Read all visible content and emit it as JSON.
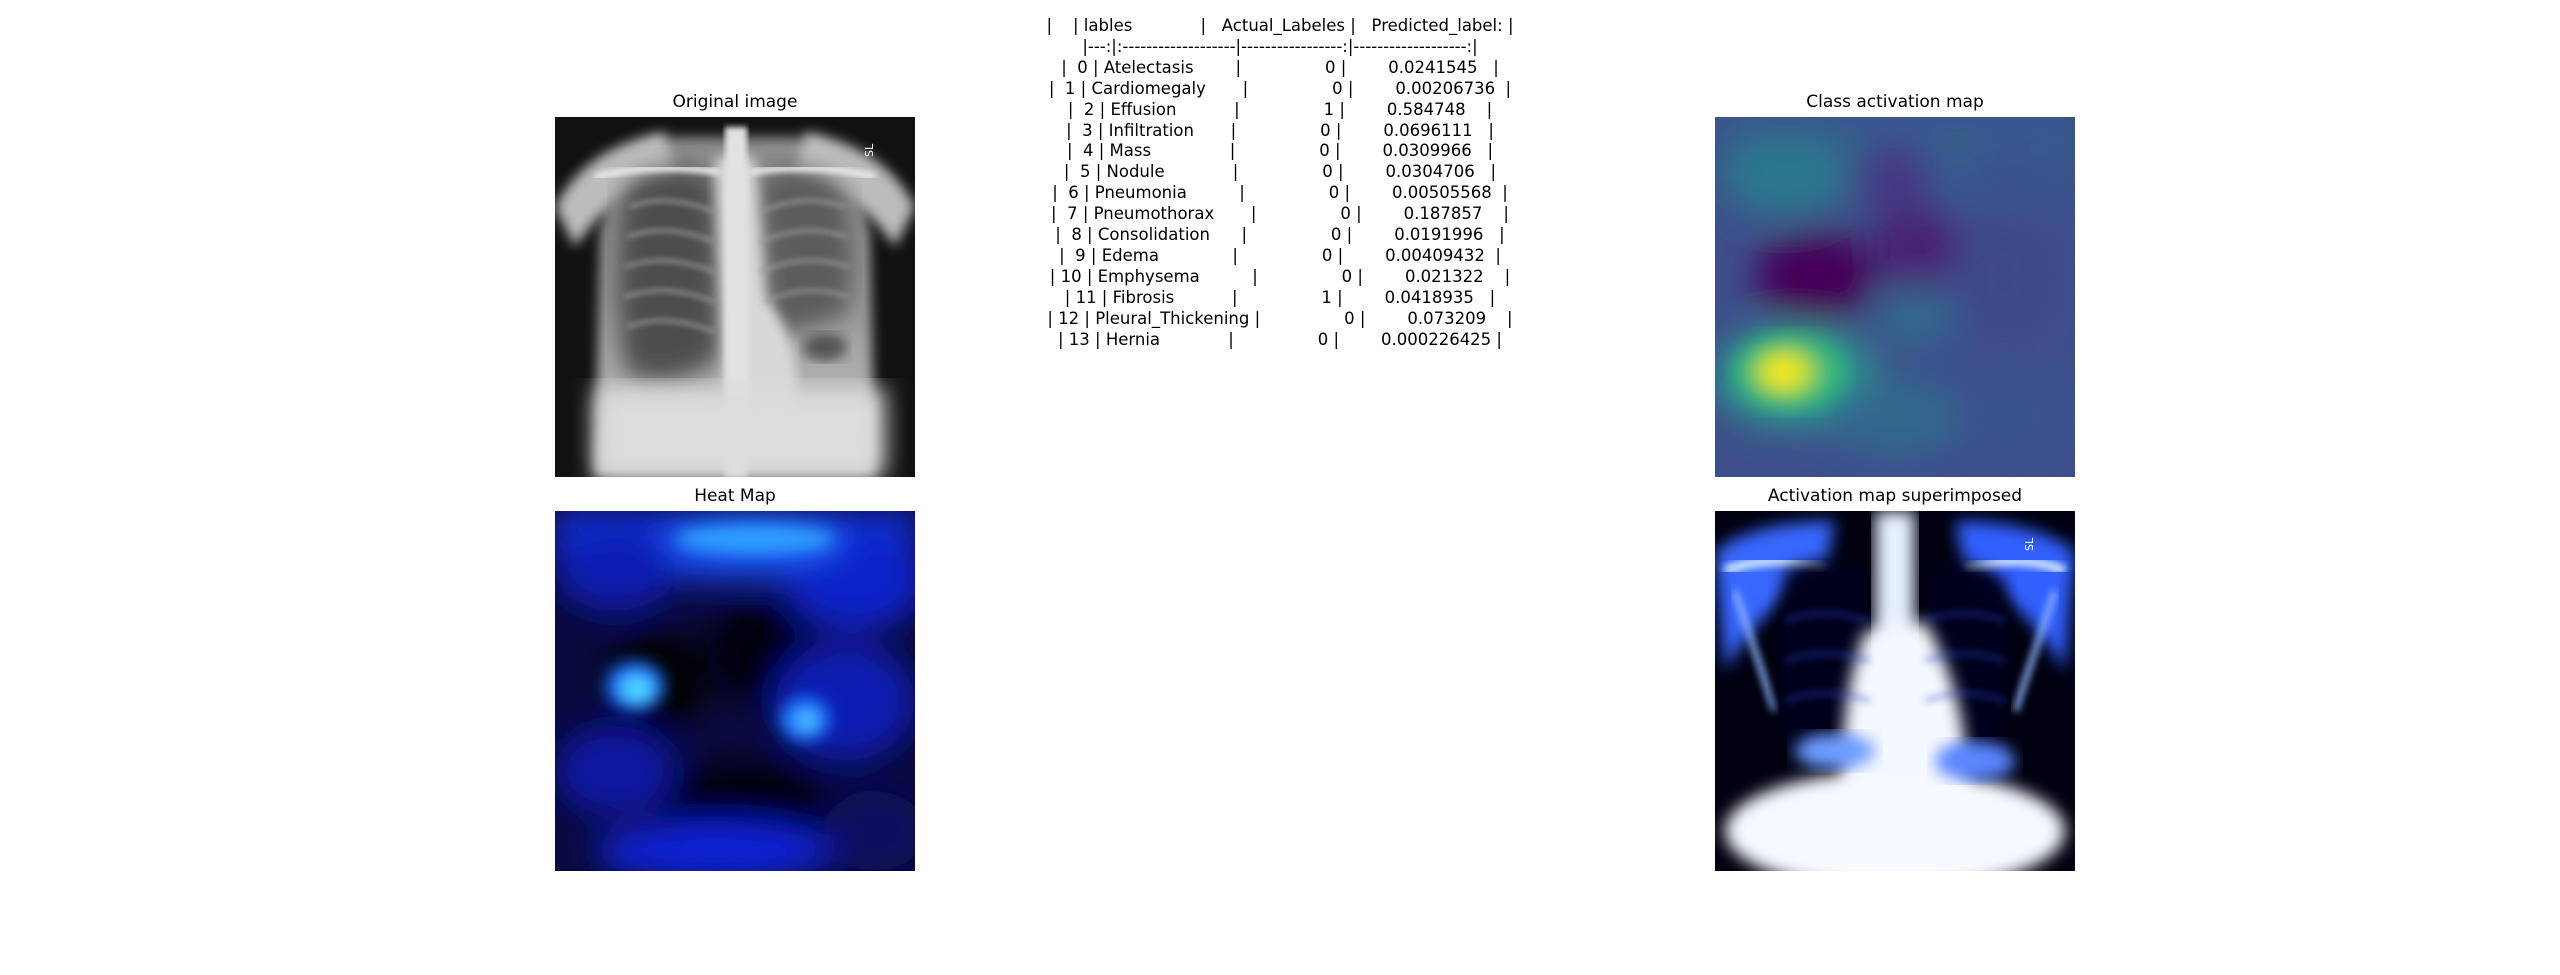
{
  "panels": {
    "original": "Original image",
    "cam": "Class activation map",
    "heat": "Heat Map",
    "superimposed": "Activation map superimposed"
  },
  "xray_marker": "SL",
  "table": {
    "header": "|    | lables             |   Actual_Labeles |   Predicted_label: |",
    "separator": "|---:|:-------------------|-----------------:|-------------------:|",
    "rows": [
      "|  0 | Atelectasis        |                0 |        0.0241545   |",
      "|  1 | Cardiomegaly       |                0 |        0.00206736  |",
      "|  2 | Effusion           |                1 |        0.584748    |",
      "|  3 | Infiltration       |                0 |        0.0696111   |",
      "|  4 | Mass               |                0 |        0.0309966   |",
      "|  5 | Nodule             |                0 |        0.0304706   |",
      "|  6 | Pneumonia          |                0 |        0.00505568  |",
      "|  7 | Pneumothorax       |                0 |        0.187857    |",
      "|  8 | Consolidation      |                0 |        0.0191996   |",
      "|  9 | Edema              |                0 |        0.00409432  |",
      "| 10 | Emphysema          |                0 |        0.021322    |",
      "| 11 | Fibrosis           |                1 |        0.0418935   |",
      "| 12 | Pleural_Thickening |                0 |        0.073209    |",
      "| 13 | Hernia             |                0 |        0.000226425 |"
    ]
  }
}
